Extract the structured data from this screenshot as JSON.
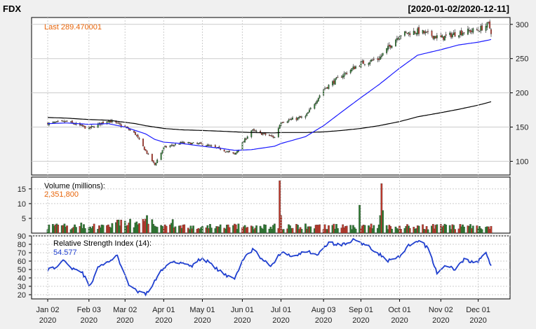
{
  "header": {
    "symbol": "FDX",
    "range": "[2020-01-02/2020-12-11]"
  },
  "colors": {
    "background": "#f0f0f0",
    "panel": "#ffffff",
    "up": "#2e7d32",
    "down": "#c0392b",
    "ma_fast": "#1a1aff",
    "ma_slow": "#000000",
    "rsi": "#1f3fcf",
    "last_label": "#e8650a",
    "grid": "#cccccc"
  },
  "chart_data": [
    {
      "type": "candlestick",
      "title": "FDX",
      "annotation": "Last 289.470001",
      "ylim": [
        80,
        310
      ],
      "yticks": [
        100,
        150,
        200,
        250,
        300
      ],
      "y_axis_side": "right",
      "grid": true,
      "x_dates": [
        "2020-01-02",
        "2020-01-17",
        "2020-02-03",
        "2020-02-18",
        "2020-03-02",
        "2020-03-10",
        "2020-03-18",
        "2020-03-25",
        "2020-04-01",
        "2020-04-15",
        "2020-05-01",
        "2020-05-15",
        "2020-05-26",
        "2020-06-08",
        "2020-06-26",
        "2020-07-01",
        "2020-07-20",
        "2020-08-03",
        "2020-08-17",
        "2020-09-01",
        "2020-09-15",
        "2020-10-01",
        "2020-10-15",
        "2020-11-02",
        "2020-11-16",
        "2020-12-01",
        "2020-12-09",
        "2020-12-11"
      ],
      "close": [
        155,
        158,
        148,
        160,
        150,
        140,
        115,
        95,
        120,
        127,
        125,
        118,
        110,
        145,
        135,
        158,
        165,
        205,
        225,
        243,
        250,
        285,
        290,
        280,
        288,
        292,
        300,
        289.47
      ],
      "ma_fast_sma50": [
        155,
        156,
        154,
        155,
        150,
        145,
        140,
        132,
        128,
        126,
        122,
        119,
        116,
        117,
        122,
        126,
        136,
        152,
        172,
        193,
        212,
        236,
        255,
        263,
        270,
        274,
        277,
        278
      ],
      "ma_slow_sma200": [
        164,
        163,
        161,
        160,
        157,
        155,
        152,
        150,
        148,
        146,
        145,
        144,
        143,
        142,
        141.5,
        142,
        142,
        143,
        145,
        148,
        152,
        158,
        165,
        171,
        176,
        182,
        186,
        187
      ]
    },
    {
      "type": "bar",
      "label": "Volume (millions):",
      "value_label": "2,351,800",
      "ylim": [
        0,
        19
      ],
      "yticks": [
        5,
        10,
        15
      ],
      "spikes": [
        {
          "date": "2020-06-30",
          "value": 17.8,
          "direction": "down"
        },
        {
          "date": "2020-07-01",
          "value": 6.0,
          "direction": "down"
        },
        {
          "date": "2020-08-31",
          "value": 9.5,
          "direction": "up"
        },
        {
          "date": "2020-09-16",
          "value": 6.0,
          "direction": "up"
        },
        {
          "date": "2020-09-17",
          "value": 16.8,
          "direction": "down"
        },
        {
          "date": "2020-09-18",
          "value": 7.7,
          "direction": "up"
        },
        {
          "date": "2020-03-19",
          "value": 6.0,
          "direction": "up"
        },
        {
          "date": "2020-02-26",
          "value": 4.5,
          "direction": "up"
        },
        {
          "date": "2020-01-28",
          "value": 3.5,
          "direction": "up"
        }
      ],
      "typical_volume": 2.2,
      "last_volume": 2.35
    },
    {
      "type": "line",
      "label": "Relative Strength Index (14):",
      "value_label": "54.577",
      "ylim": [
        15,
        90
      ],
      "yticks": [
        20,
        30,
        40,
        50,
        60,
        70,
        80,
        90
      ],
      "x_dates": [
        "2020-01-02",
        "2020-01-08",
        "2020-01-15",
        "2020-01-21",
        "2020-01-28",
        "2020-02-04",
        "2020-02-11",
        "2020-02-19",
        "2020-02-25",
        "2020-03-04",
        "2020-03-11",
        "2020-03-18",
        "2020-03-24",
        "2020-03-31",
        "2020-04-08",
        "2020-04-16",
        "2020-04-23",
        "2020-05-01",
        "2020-05-11",
        "2020-05-18",
        "2020-05-26",
        "2020-06-03",
        "2020-06-10",
        "2020-06-17",
        "2020-06-24",
        "2020-07-01",
        "2020-07-10",
        "2020-07-20",
        "2020-07-30",
        "2020-08-07",
        "2020-08-17",
        "2020-08-26",
        "2020-09-04",
        "2020-09-14",
        "2020-09-22",
        "2020-10-01",
        "2020-10-08",
        "2020-10-16",
        "2020-10-23",
        "2020-10-30",
        "2020-11-06",
        "2020-11-13",
        "2020-11-20",
        "2020-11-30",
        "2020-12-07",
        "2020-12-11"
      ],
      "values": [
        50,
        52,
        62,
        52,
        48,
        30,
        55,
        60,
        66,
        34,
        24,
        20,
        34,
        50,
        60,
        58,
        55,
        64,
        52,
        44,
        40,
        65,
        75,
        60,
        55,
        70,
        66,
        72,
        68,
        82,
        79,
        85,
        80,
        70,
        60,
        65,
        78,
        84,
        76,
        46,
        55,
        50,
        62,
        58,
        70,
        54.577
      ]
    }
  ],
  "x_axis": {
    "ticks": [
      {
        "date": "2020-01-02",
        "line1": "Jan 02",
        "line2": "2020"
      },
      {
        "date": "2020-02-03",
        "line1": "Feb 03",
        "line2": "2020"
      },
      {
        "date": "2020-03-02",
        "line1": "Mar 02",
        "line2": "2020"
      },
      {
        "date": "2020-04-01",
        "line1": "Apr 01",
        "line2": "2020"
      },
      {
        "date": "2020-05-01",
        "line1": "May 01",
        "line2": "2020"
      },
      {
        "date": "2020-06-01",
        "line1": "Jun 01",
        "line2": "2020"
      },
      {
        "date": "2020-07-01",
        "line1": "Jul 01",
        "line2": "2020"
      },
      {
        "date": "2020-08-03",
        "line1": "Aug 03",
        "line2": "2020"
      },
      {
        "date": "2020-09-01",
        "line1": "Sep 01",
        "line2": "2020"
      },
      {
        "date": "2020-10-01",
        "line1": "Oct 01",
        "line2": "2020"
      },
      {
        "date": "2020-11-02",
        "line1": "Nov 02",
        "line2": "2020"
      },
      {
        "date": "2020-12-01",
        "line1": "Dec 01",
        "line2": "2020"
      }
    ]
  }
}
